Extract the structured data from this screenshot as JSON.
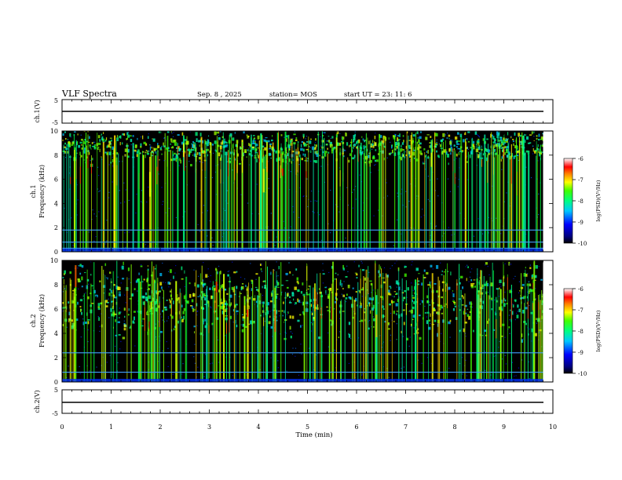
{
  "header": {
    "title": "VLF Spectra",
    "date": "Sep. 8 , 2025",
    "station": "station= MOS",
    "start_ut": "start UT =  23: 11: 6"
  },
  "chart_data": [
    {
      "type": "line",
      "id": "ch1-voltage",
      "ylabel": "ch.1(V)",
      "ylim": [
        -5,
        5
      ],
      "y_ticks": [
        "5",
        "-5"
      ],
      "x": [
        0,
        9.8
      ],
      "values": [
        -2,
        -2
      ]
    },
    {
      "type": "heatmap",
      "id": "ch1-spectrum",
      "ylabel_top": "ch.1",
      "ylabel": "Frequency (kHz)",
      "ylim": [
        0,
        10
      ],
      "y_ticks": [
        "0",
        "2",
        "4",
        "6",
        "8",
        "10"
      ],
      "xlim": [
        0,
        10
      ],
      "colorbar": {
        "label": "log(PSD)(V²/Hz)",
        "ticks": [
          "-6",
          "-7",
          "-8",
          "-9",
          "-10"
        ],
        "range": [
          -10,
          -6
        ]
      },
      "band_center_khz": 8.8,
      "horizontal_lines_khz": [
        1.8,
        0.8,
        0.3
      ]
    },
    {
      "type": "heatmap",
      "id": "ch2-spectrum",
      "ylabel_top": "ch.2",
      "ylabel": "Frequency (kHz)",
      "ylim": [
        0,
        10
      ],
      "y_ticks": [
        "0",
        "2",
        "4",
        "6",
        "8",
        "10"
      ],
      "xlim": [
        0,
        10
      ],
      "colorbar": {
        "label": "log(PSD)(V²/Hz)",
        "ticks": [
          "-6",
          "-7",
          "-8",
          "-9",
          "-10"
        ],
        "range": [
          -10,
          -6
        ]
      },
      "band_center_khz": 6.8,
      "horizontal_lines_khz": [
        2.4,
        0.8
      ]
    },
    {
      "type": "line",
      "id": "ch2-voltage",
      "ylabel": "ch.2(V)",
      "ylim": [
        -5,
        5
      ],
      "y_ticks": [
        "5",
        "-5"
      ],
      "x": [
        0,
        9.8
      ],
      "values": [
        -1,
        -1
      ]
    }
  ],
  "x_axis": {
    "label": "Time (min)",
    "ticks": [
      "0",
      "1",
      "2",
      "3",
      "4",
      "5",
      "6",
      "7",
      "8",
      "9",
      "10"
    ],
    "xlim": [
      0,
      10
    ],
    "data_end_min": 9.8
  }
}
